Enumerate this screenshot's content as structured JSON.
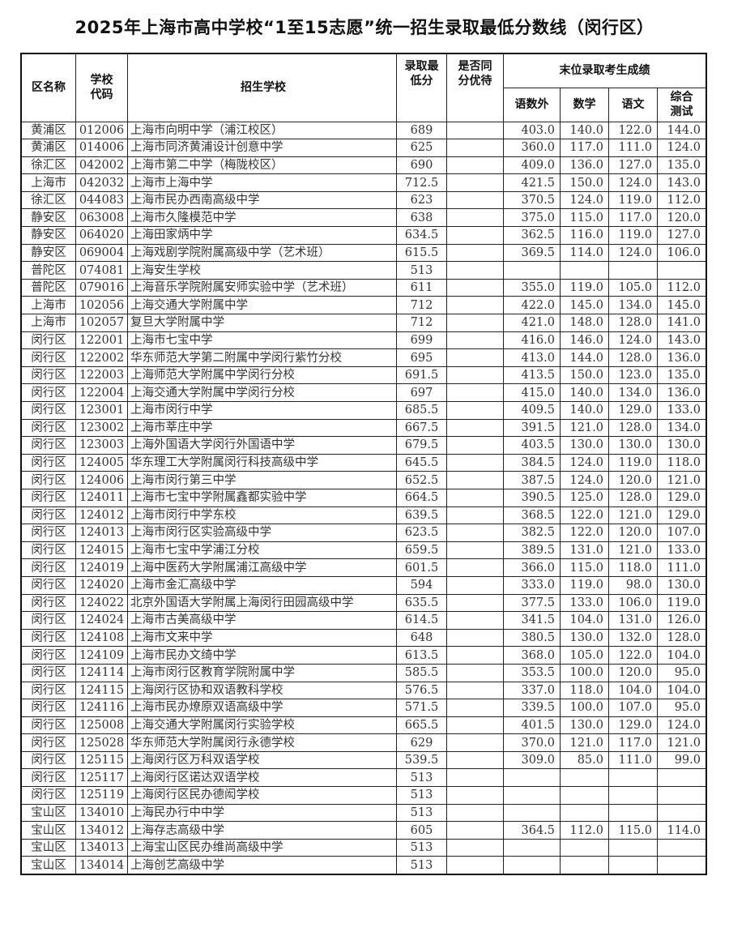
{
  "title": "2025年上海市高中学校“1至15志愿”统一招生录取最低分数线（闵行区）",
  "headers": {
    "district": "区名称",
    "code": "学校代码",
    "school": "招生学校",
    "min_score": "录取最低分",
    "tie_priority": "是否同分优待",
    "last_group": "末位录取考生成绩",
    "yushuwai": "语数外",
    "math": "数学",
    "chinese": "语文",
    "comprehensive": "综合测试"
  },
  "rows": [
    [
      "黄浦区",
      "012006",
      "上海市向明中学（浦江校区）",
      "689",
      "",
      "403.0",
      "140.0",
      "122.0",
      "144.0"
    ],
    [
      "黄浦区",
      "014006",
      "上海市同济黄浦设计创意中学",
      "625",
      "",
      "360.0",
      "117.0",
      "111.0",
      "124.0"
    ],
    [
      "徐汇区",
      "042002",
      "上海市第二中学（梅陇校区）",
      "690",
      "",
      "409.0",
      "136.0",
      "127.0",
      "135.0"
    ],
    [
      "上海市",
      "042032",
      "上海市上海中学",
      "712.5",
      "",
      "421.5",
      "150.0",
      "124.0",
      "143.0"
    ],
    [
      "徐汇区",
      "044083",
      "上海市民办西南高级中学",
      "623",
      "",
      "370.5",
      "124.0",
      "119.0",
      "112.0"
    ],
    [
      "静安区",
      "063008",
      "上海市久隆模范中学",
      "638",
      "",
      "375.0",
      "115.0",
      "117.0",
      "120.0"
    ],
    [
      "静安区",
      "064020",
      "上海田家炳中学",
      "634.5",
      "",
      "362.5",
      "116.0",
      "119.0",
      "127.0"
    ],
    [
      "静安区",
      "069004",
      "上海戏剧学院附属高级中学（艺术班）",
      "615.5",
      "",
      "369.5",
      "114.0",
      "124.0",
      "106.0"
    ],
    [
      "普陀区",
      "074081",
      "上海安生学校",
      "513",
      "",
      "",
      "",
      "",
      ""
    ],
    [
      "普陀区",
      "079016",
      "上海音乐学院附属安师实验中学（艺术班）",
      "611",
      "",
      "355.0",
      "119.0",
      "105.0",
      "112.0"
    ],
    [
      "上海市",
      "102056",
      "上海交通大学附属中学",
      "712",
      "",
      "422.0",
      "145.0",
      "134.0",
      "145.0"
    ],
    [
      "上海市",
      "102057",
      "复旦大学附属中学",
      "712",
      "",
      "421.0",
      "148.0",
      "128.0",
      "141.0"
    ],
    [
      "闵行区",
      "122001",
      "上海市七宝中学",
      "699",
      "",
      "416.0",
      "146.0",
      "124.0",
      "143.0"
    ],
    [
      "闵行区",
      "122002",
      "华东师范大学第二附属中学闵行紫竹分校",
      "695",
      "",
      "413.0",
      "144.0",
      "128.0",
      "136.0"
    ],
    [
      "闵行区",
      "122003",
      "上海师范大学附属中学闵行分校",
      "691.5",
      "",
      "413.5",
      "150.0",
      "123.0",
      "135.0"
    ],
    [
      "闵行区",
      "122004",
      "上海交通大学附属中学闵行分校",
      "697",
      "",
      "415.0",
      "140.0",
      "134.0",
      "136.0"
    ],
    [
      "闵行区",
      "123001",
      "上海市闵行中学",
      "685.5",
      "",
      "409.5",
      "140.0",
      "129.0",
      "133.0"
    ],
    [
      "闵行区",
      "123002",
      "上海市莘庄中学",
      "667.5",
      "",
      "391.5",
      "121.0",
      "128.0",
      "134.0"
    ],
    [
      "闵行区",
      "123003",
      "上海外国语大学闵行外国语中学",
      "679.5",
      "",
      "403.5",
      "130.0",
      "130.0",
      "130.0"
    ],
    [
      "闵行区",
      "124005",
      "华东理工大学附属闵行科技高级中学",
      "645.5",
      "",
      "384.5",
      "124.0",
      "119.0",
      "118.0"
    ],
    [
      "闵行区",
      "124006",
      "上海市闵行第三中学",
      "652.5",
      "",
      "387.5",
      "124.0",
      "120.0",
      "121.0"
    ],
    [
      "闵行区",
      "124011",
      "上海市七宝中学附属鑫都实验中学",
      "664.5",
      "",
      "390.5",
      "125.0",
      "128.0",
      "129.0"
    ],
    [
      "闵行区",
      "124012",
      "上海市闵行中学东校",
      "639.5",
      "",
      "368.5",
      "122.0",
      "121.0",
      "129.0"
    ],
    [
      "闵行区",
      "124013",
      "上海市闵行区实验高级中学",
      "623.5",
      "",
      "382.5",
      "122.0",
      "120.0",
      "107.0"
    ],
    [
      "闵行区",
      "124015",
      "上海市七宝中学浦江分校",
      "659.5",
      "",
      "389.5",
      "131.0",
      "121.0",
      "133.0"
    ],
    [
      "闵行区",
      "124019",
      "上海中医药大学附属浦江高级中学",
      "601.5",
      "",
      "366.0",
      "115.0",
      "118.0",
      "111.0"
    ],
    [
      "闵行区",
      "124020",
      "上海市金汇高级中学",
      "594",
      "",
      "333.0",
      "119.0",
      "98.0",
      "130.0"
    ],
    [
      "闵行区",
      "124022",
      "北京外国语大学附属上海闵行田园高级中学",
      "635.5",
      "",
      "377.5",
      "133.0",
      "106.0",
      "119.0"
    ],
    [
      "闵行区",
      "124024",
      "上海市古美高级中学",
      "614.5",
      "",
      "341.5",
      "104.0",
      "131.0",
      "126.0"
    ],
    [
      "闵行区",
      "124108",
      "上海市文来中学",
      "648",
      "",
      "380.5",
      "130.0",
      "132.0",
      "128.0"
    ],
    [
      "闵行区",
      "124109",
      "上海市民办文绮中学",
      "613.5",
      "",
      "368.0",
      "105.0",
      "122.0",
      "104.0"
    ],
    [
      "闵行区",
      "124114",
      "上海市闵行区教育学院附属中学",
      "585.5",
      "",
      "353.5",
      "100.0",
      "120.0",
      "95.0"
    ],
    [
      "闵行区",
      "124115",
      "上海闵行区协和双语教科学校",
      "576.5",
      "",
      "337.0",
      "118.0",
      "104.0",
      "104.0"
    ],
    [
      "闵行区",
      "124116",
      "上海市民办燎原双语高级中学",
      "571.5",
      "",
      "339.5",
      "100.0",
      "107.0",
      "95.0"
    ],
    [
      "闵行区",
      "125008",
      "上海交通大学附属闵行实验学校",
      "665.5",
      "",
      "401.5",
      "130.0",
      "129.0",
      "124.0"
    ],
    [
      "闵行区",
      "125028",
      "华东师范大学附属闵行永德学校",
      "629",
      "",
      "370.0",
      "121.0",
      "117.0",
      "121.0"
    ],
    [
      "闵行区",
      "125115",
      "上海闵行区万科双语学校",
      "539.5",
      "",
      "309.0",
      "85.0",
      "111.0",
      "99.0"
    ],
    [
      "闵行区",
      "125117",
      "上海闵行区诺达双语学校",
      "513",
      "",
      "",
      "",
      "",
      ""
    ],
    [
      "闵行区",
      "125119",
      "上海闵行区民办德闳学校",
      "513",
      "",
      "",
      "",
      "",
      ""
    ],
    [
      "宝山区",
      "134010",
      "上海民办行中中学",
      "513",
      "",
      "",
      "",
      "",
      ""
    ],
    [
      "宝山区",
      "134012",
      "上海存志高级中学",
      "605",
      "",
      "364.5",
      "112.0",
      "115.0",
      "114.0"
    ],
    [
      "宝山区",
      "134013",
      "上海宝山区民办维尚高级中学",
      "513",
      "",
      "",
      "",
      "",
      ""
    ],
    [
      "宝山区",
      "134014",
      "上海创艺高级中学",
      "513",
      "",
      "",
      "",
      "",
      ""
    ]
  ]
}
